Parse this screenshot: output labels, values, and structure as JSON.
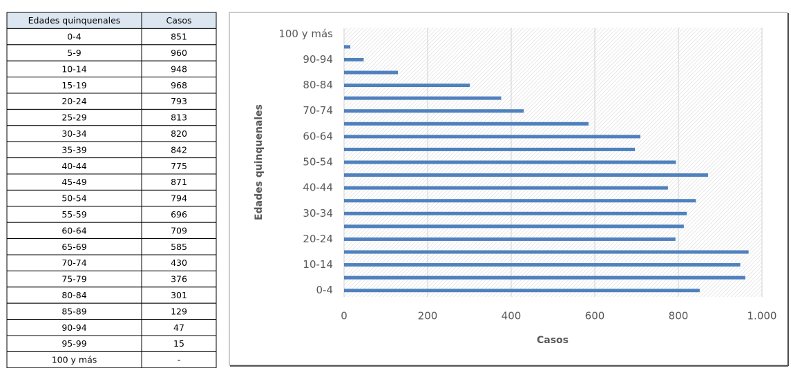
{
  "table": {
    "header": [
      "Edades quinquenales",
      "Casos"
    ],
    "rows": [
      [
        "0-4",
        851
      ],
      [
        "5-9",
        960
      ],
      [
        "10-14",
        948
      ],
      [
        "15-19",
        968
      ],
      [
        "20-24",
        793
      ],
      [
        "25-29",
        813
      ],
      [
        "30-34",
        820
      ],
      [
        "35-39",
        842
      ],
      [
        "40-44",
        775
      ],
      [
        "45-49",
        871
      ],
      [
        "50-54",
        794
      ],
      [
        "55-59",
        696
      ],
      [
        "60-64",
        709
      ],
      [
        "65-69",
        585
      ],
      [
        "70-74",
        430
      ],
      [
        "75-79",
        376
      ],
      [
        "80-84",
        301
      ],
      [
        "85-89",
        129
      ],
      [
        "90-94",
        47
      ],
      [
        "95-99",
        15
      ],
      [
        "100 y más",
        "-"
      ]
    ]
  },
  "chart_data": {
    "type": "hbar",
    "categories": [
      "0-4",
      null,
      "10-14",
      null,
      "20-24",
      null,
      "30-34",
      null,
      "40-44",
      null,
      "50-54",
      null,
      "60-64",
      null,
      "70-74",
      null,
      "80-84",
      null,
      "90-94",
      null,
      "100 y más"
    ],
    "values": [
      851,
      960,
      948,
      968,
      793,
      813,
      820,
      842,
      775,
      871,
      794,
      696,
      709,
      585,
      430,
      376,
      301,
      129,
      47,
      15,
      null
    ],
    "color": "#4f81bd",
    "xlim": [
      0,
      1000
    ],
    "xticks": [
      0,
      200,
      400,
      600,
      800,
      {
        "value": 1000,
        "label": "1.000"
      }
    ],
    "xlabel": "Casos",
    "ylabel": "Edades quinquenales",
    "grid": true
  }
}
